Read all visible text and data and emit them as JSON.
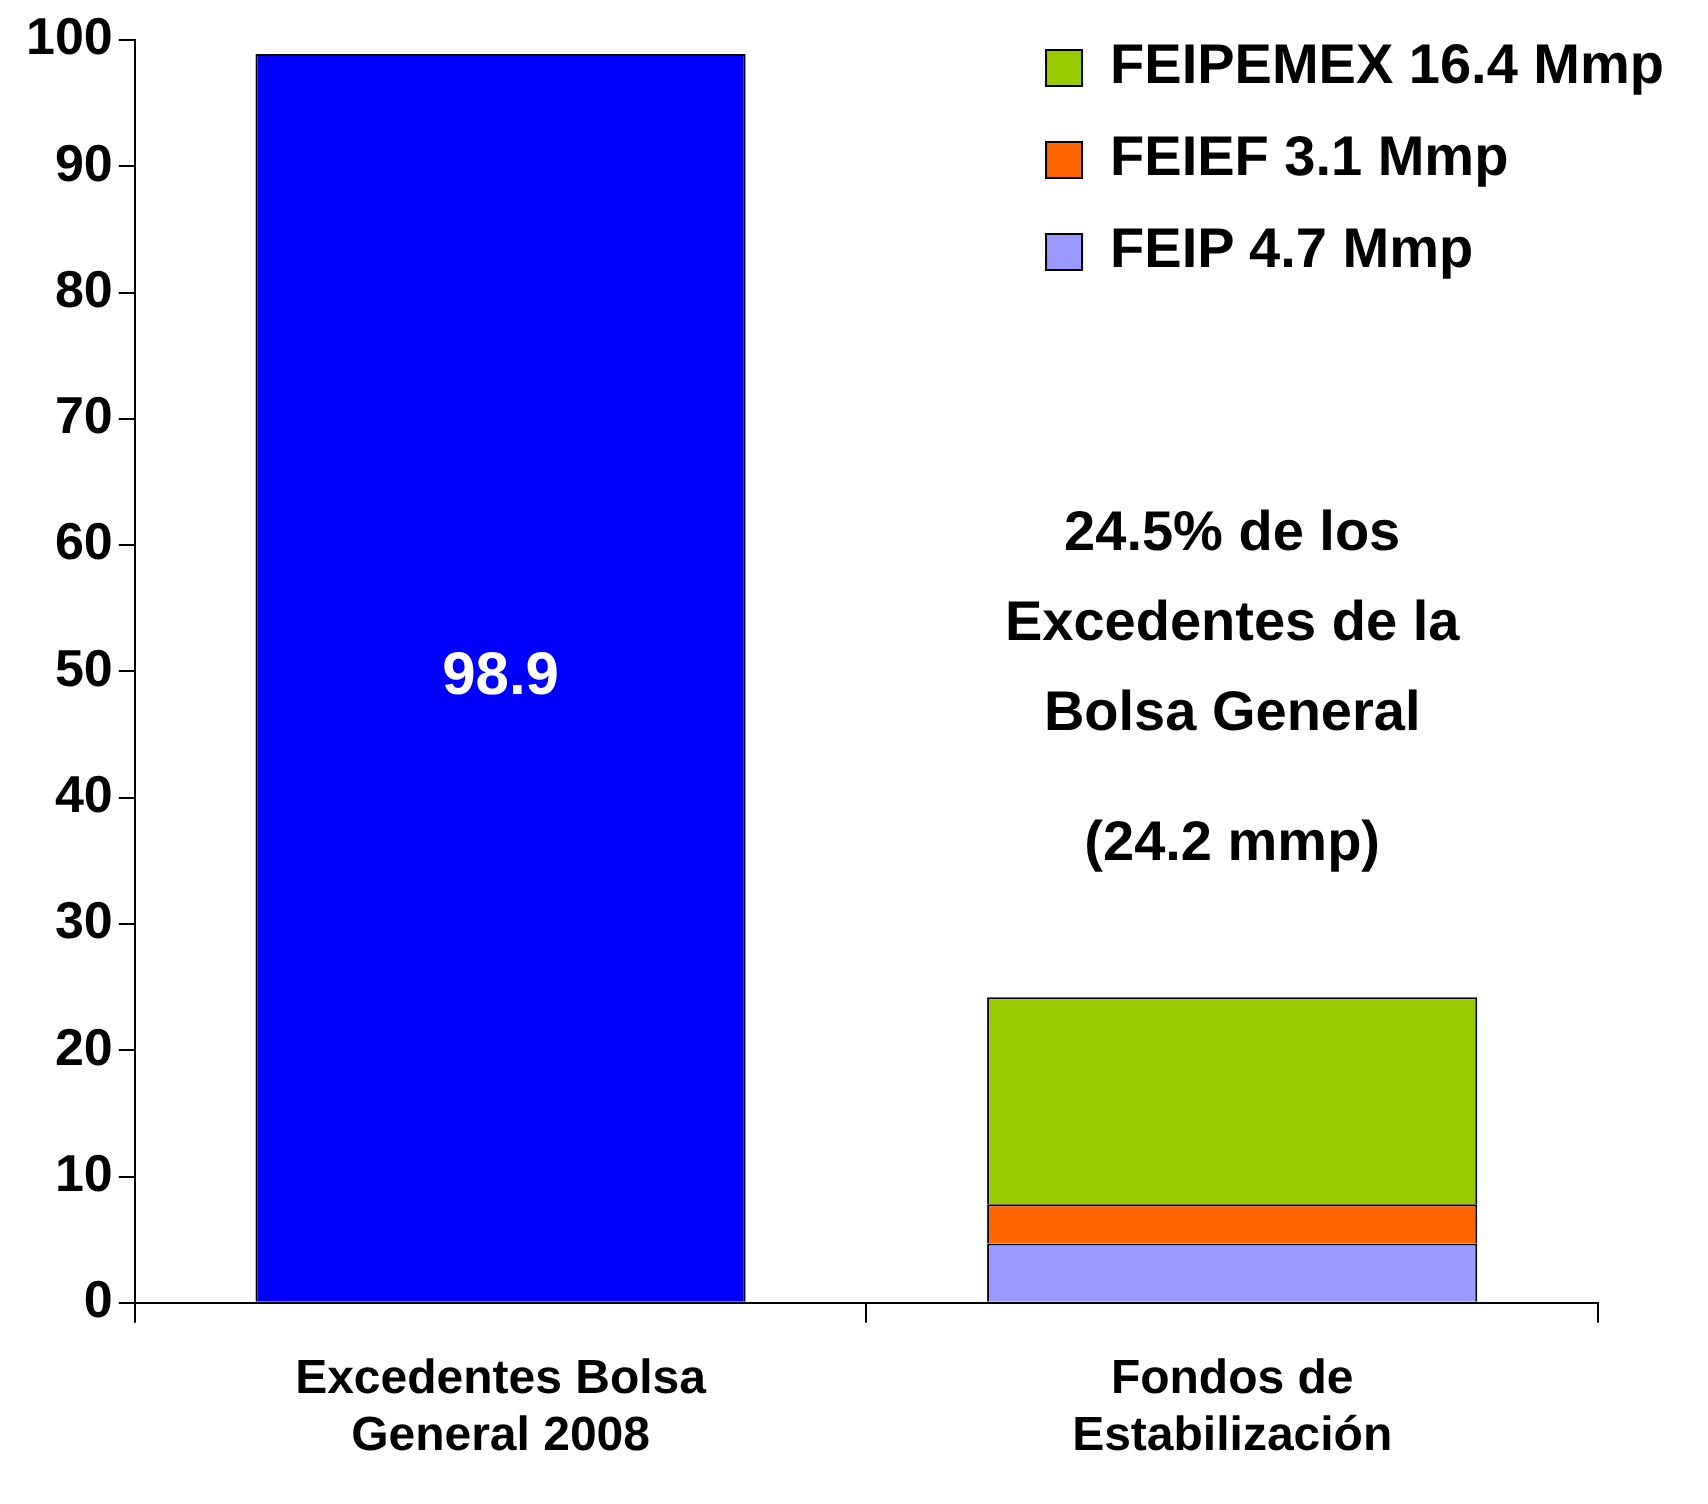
{
  "chart_data": {
    "type": "bar",
    "stacked": true,
    "categories": [
      "Excedentes Bolsa General 2008",
      "Fondos de Estabilización"
    ],
    "series": [
      {
        "color": "#0000ff",
        "values": [
          98.9,
          null
        ],
        "value_labels": [
          "98.9",
          null
        ]
      },
      {
        "name": "FEIP 4.7 Mmp",
        "color": "#9999ff",
        "values": [
          null,
          4.7
        ]
      },
      {
        "name": "FEIEF 3.1 Mmp",
        "color": "#ff6600",
        "values": [
          null,
          3.1
        ]
      },
      {
        "name": "FEIPEMEX 16.4 Mmp",
        "color": "#99cc00",
        "values": [
          null,
          16.4
        ]
      }
    ],
    "ylim": [
      0,
      100
    ],
    "yticks": [
      0,
      10,
      20,
      30,
      40,
      50,
      60,
      70,
      80,
      90,
      100
    ],
    "grid": false,
    "legend": "top right",
    "annotations": [
      "24.5% de los Excedentes de la Bolsa General",
      "(24.2 mmp)"
    ]
  }
}
